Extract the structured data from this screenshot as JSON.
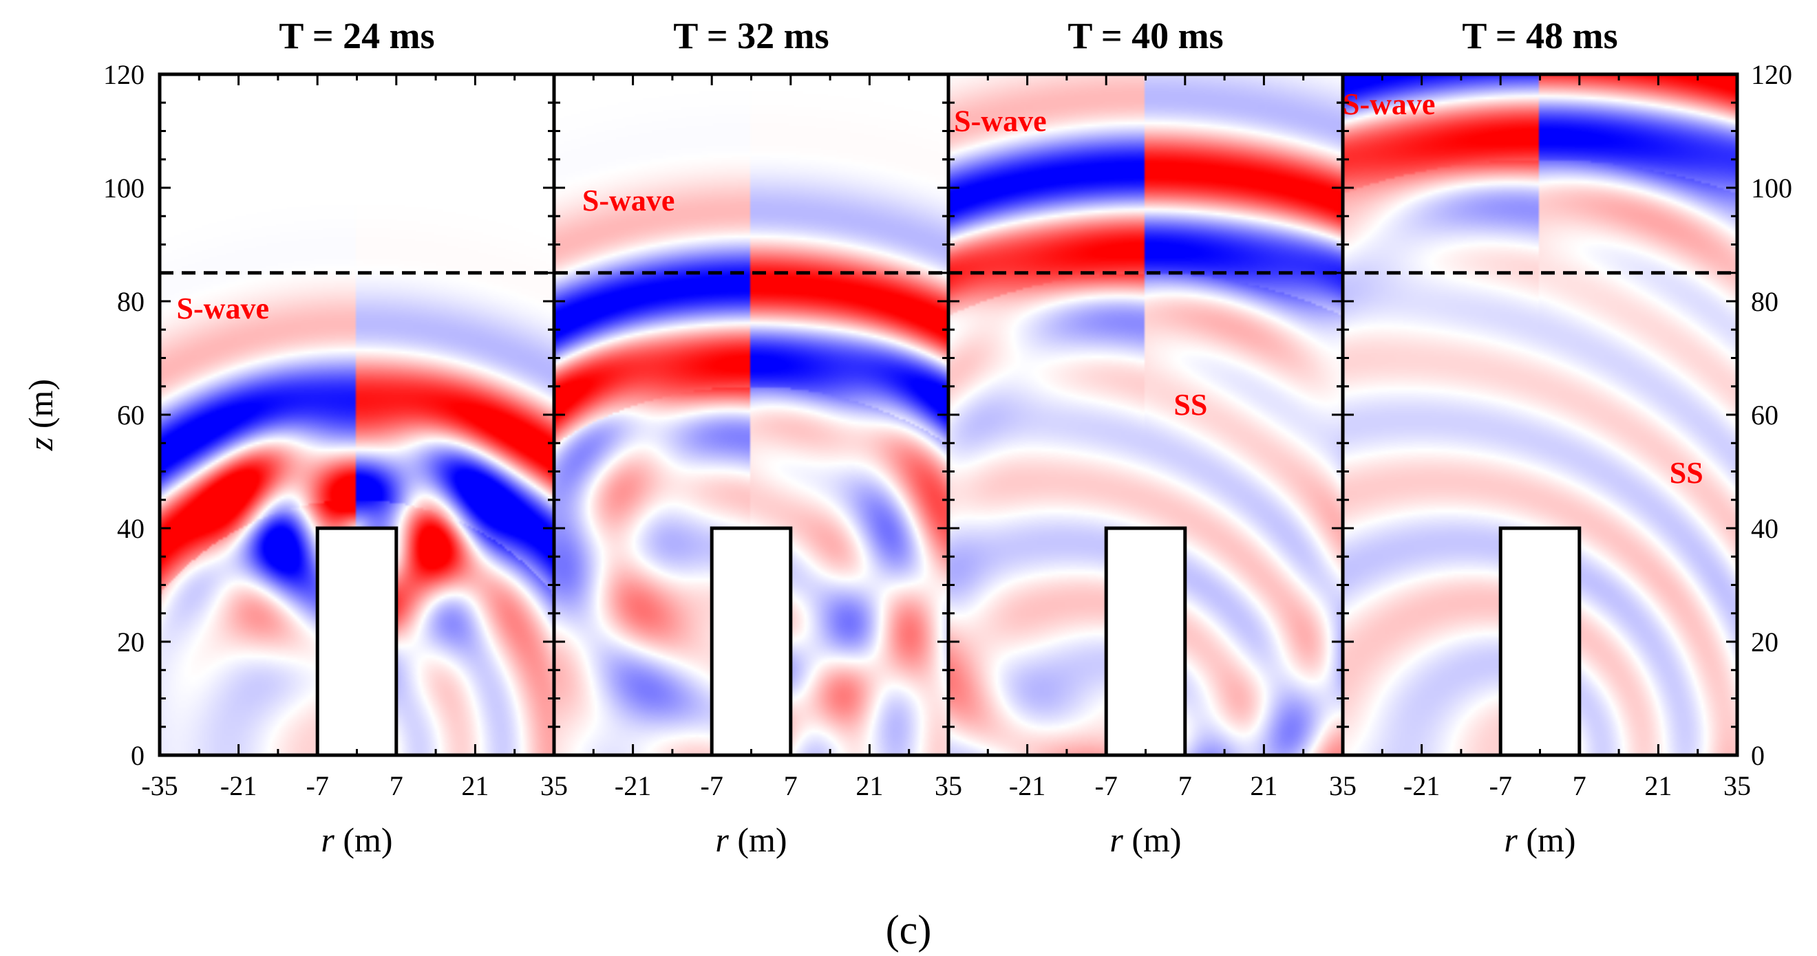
{
  "chart_data": {
    "type": "heatmap",
    "caption": "(c)",
    "xlabel_italic": "r",
    "xlabel_unit": " (m)",
    "ylabel_italic": "z",
    "ylabel_unit": " (m)",
    "xlim": [
      -35,
      35
    ],
    "ylim": [
      0,
      120
    ],
    "x_ticks": [
      -35,
      -21,
      -7,
      7,
      21,
      35
    ],
    "x_tick_labels": [
      "-35",
      "-21",
      "-7",
      "7",
      "21",
      "35"
    ],
    "y_ticks": [
      0,
      20,
      40,
      60,
      80,
      100,
      120
    ],
    "y_tick_labels": [
      "0",
      "20",
      "40",
      "60",
      "80",
      "100",
      "120"
    ],
    "dashed_line_z": 85,
    "structure": {
      "r_min": -7,
      "r_max": 7,
      "z_min": 0,
      "z_max": 40
    },
    "colors": {
      "positive": "#ff0000",
      "negative": "#0000ff",
      "zero": "#ffffff"
    },
    "panels": [
      {
        "title": "T = 24 ms",
        "time_ms": 24,
        "wavefront_radius": 57,
        "annotations": [
          {
            "text": "S-wave",
            "r": -32,
            "z": 77
          }
        ]
      },
      {
        "title": "T = 32 ms",
        "time_ms": 32,
        "wavefront_radius": 77,
        "annotations": [
          {
            "text": "S-wave",
            "r": -30,
            "z": 96
          }
        ]
      },
      {
        "title": "T = 40 ms",
        "time_ms": 40,
        "wavefront_radius": 97,
        "annotations": [
          {
            "text": "S-wave",
            "r": -34,
            "z": 110
          },
          {
            "text": "SS",
            "r": 5,
            "z": 60
          }
        ]
      },
      {
        "title": "T = 48 ms",
        "time_ms": 48,
        "wavefront_radius": 117,
        "annotations": [
          {
            "text": "S-wave",
            "r": -35,
            "z": 113
          },
          {
            "text": "SS",
            "r": 23,
            "z": 48
          }
        ]
      }
    ]
  }
}
